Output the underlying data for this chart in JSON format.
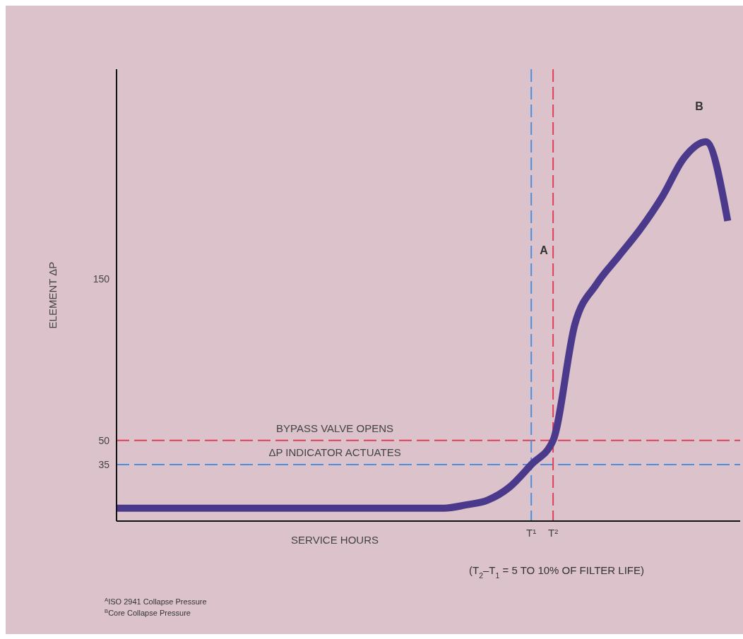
{
  "chart_data": {
    "type": "line",
    "xlabel": "SERVICE HOURS",
    "ylabel": "ELEMENT ΔP",
    "categories": [
      null,
      null,
      null,
      null,
      null,
      null,
      null,
      null,
      null,
      null,
      null,
      null,
      null,
      null,
      null,
      null,
      null,
      null,
      null,
      "T¹",
      "T²",
      null,
      null,
      null,
      null,
      null,
      null,
      null,
      null
    ],
    "series": [
      {
        "color": "#4b3a8c",
        "values": [
          8,
          8,
          8,
          8,
          8,
          8,
          8,
          8,
          8,
          8,
          8,
          8,
          8,
          8,
          8,
          8,
          10,
          13,
          21,
          35,
          50,
          122,
          147,
          164,
          181,
          201,
          225,
          235,
          186
        ]
      }
    ],
    "ylim": [
      0,
      280
    ],
    "yticks": [
      35,
      50,
      150
    ],
    "grid": false,
    "marker": "none",
    "line_style": "solid",
    "ref_lines": [
      {
        "axis": "y",
        "value": 50,
        "label": "BYPASS VALVE OPENS",
        "color": "#e0405a",
        "line_style": "dashed"
      },
      {
        "axis": "y",
        "value": 35,
        "label": "ΔP INDICATOR ACTUATES",
        "color": "#4a8fe0",
        "line_style": "dashed"
      },
      {
        "axis": "x",
        "value": "T¹",
        "color": "#4a8fe0",
        "line_style": "dashed"
      },
      {
        "axis": "x",
        "value": "T²",
        "color": "#e0405a",
        "line_style": "dashed"
      }
    ],
    "annotations": [
      "A",
      "B",
      "(T$_{2}$–T$_{1}$ = 5 TO 10% OF FILTER LIFE)",
      "$^{A}$ISO 2941 Collapse Pressure",
      "$^{B}$Core Collapse Pressure"
    ]
  }
}
